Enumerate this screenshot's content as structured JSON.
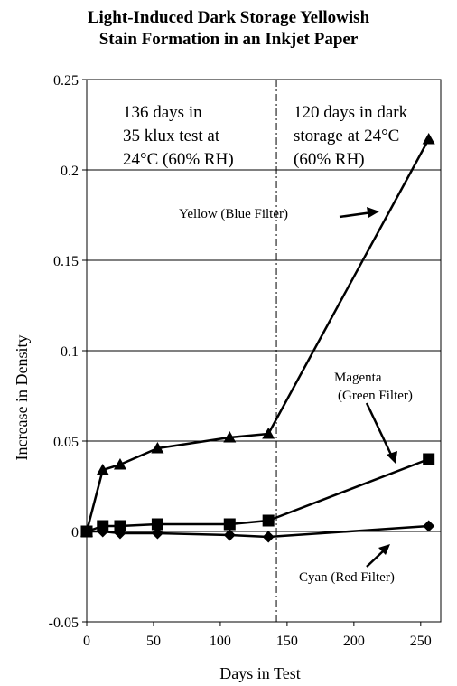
{
  "chart_data": {
    "type": "line",
    "title_lines": [
      "Light-Induced Dark Storage Yellowish",
      "Stain Formation in an Inkjet Paper"
    ],
    "xlabel": "Days in Test",
    "ylabel": "Increase in  Density",
    "xlim": [
      0,
      265
    ],
    "ylim": [
      -0.05,
      0.25
    ],
    "x_ticks": [
      "0",
      "50",
      "100",
      "150",
      "200",
      "250"
    ],
    "y_ticks": [
      "-0.05",
      "0",
      "0.05",
      "0.1",
      "0.15",
      "0.2",
      "0.25"
    ],
    "grid": "horizontal",
    "divider_x": 142,
    "series": [
      {
        "name": "Yellow (Blue Filter)",
        "marker": "triangle",
        "points": [
          [
            0,
            0.0
          ],
          [
            12,
            0.034
          ],
          [
            25,
            0.037
          ],
          [
            53,
            0.046
          ],
          [
            107,
            0.052
          ],
          [
            136,
            0.054
          ],
          [
            256,
            0.217
          ]
        ]
      },
      {
        "name": "Magenta (Green Filter)",
        "marker": "square",
        "points": [
          [
            0,
            0.0
          ],
          [
            12,
            0.003
          ],
          [
            25,
            0.003
          ],
          [
            53,
            0.004
          ],
          [
            107,
            0.004
          ],
          [
            136,
            0.006
          ],
          [
            256,
            0.04
          ]
        ]
      },
      {
        "name": "Cyan (Red Filter)",
        "marker": "diamond",
        "points": [
          [
            0,
            0.0
          ],
          [
            12,
            0.0
          ],
          [
            25,
            -0.001
          ],
          [
            53,
            -0.001
          ],
          [
            107,
            -0.002
          ],
          [
            136,
            -0.003
          ],
          [
            256,
            0.003
          ]
        ]
      }
    ],
    "annotations": {
      "phase1": [
        "136 days in",
        "35 klux test at",
        "24°C (60% RH)"
      ],
      "phase2": [
        "120 days in dark",
        "storage at 24°C",
        "(60% RH)"
      ],
      "yellow": "Yellow (Blue Filter)",
      "magenta": [
        "Magenta",
        "(Green Filter)"
      ],
      "cyan": "Cyan (Red Filter)"
    }
  }
}
